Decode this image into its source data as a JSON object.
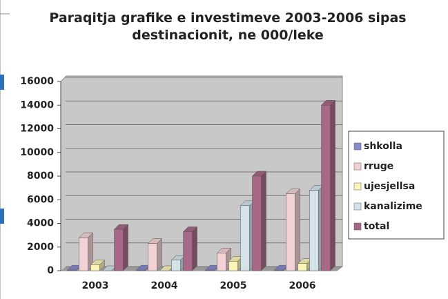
{
  "chart_data": {
    "type": "bar3d",
    "title": "Paraqitja grafike e investimeve 2003-2006 sipas destinacionit, ne 000/leke",
    "categories": [
      "2003",
      "2004",
      "2005",
      "2006"
    ],
    "series": [
      {
        "name": "shkolla",
        "color": "#8a8ad0",
        "values": [
          50,
          50,
          50,
          50
        ]
      },
      {
        "name": "rruge",
        "color": "#f2d2d4",
        "values": [
          2800,
          2300,
          1500,
          6500
        ]
      },
      {
        "name": "ujesjellsa",
        "color": "#fbf6b8",
        "values": [
          500,
          0,
          800,
          600
        ]
      },
      {
        "name": "kanalizime",
        "color": "#d4e2ea",
        "values": [
          0,
          900,
          5500,
          6800
        ]
      },
      {
        "name": "total",
        "color": "#a86888",
        "values": [
          3500,
          3300,
          8000,
          14000
        ]
      }
    ],
    "ylim": [
      0,
      16000
    ],
    "yticks": [
      0,
      2000,
      4000,
      6000,
      8000,
      10000,
      12000,
      14000,
      16000
    ],
    "grid": true,
    "legend": "right"
  }
}
